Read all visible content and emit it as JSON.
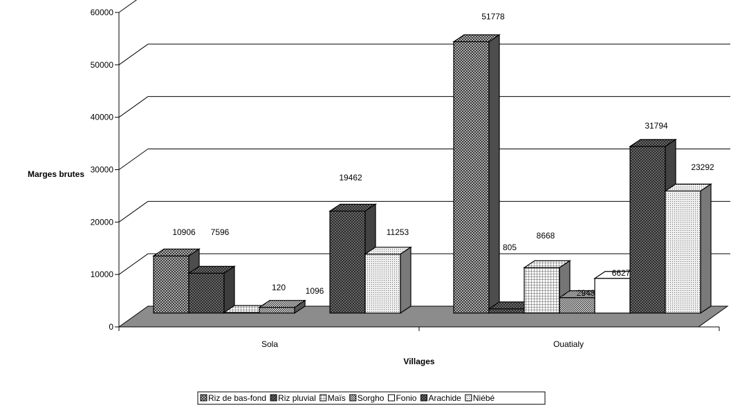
{
  "chart_data": {
    "type": "bar",
    "style": "3d-clustered",
    "title": "",
    "xlabel": "Villages",
    "ylabel": "Marges brutes",
    "ylim": [
      0,
      60000
    ],
    "yticks": [
      "0",
      "10000",
      "20000",
      "30000",
      "40000",
      "50000",
      "60000"
    ],
    "categories": [
      "Sola",
      "Ouatialy"
    ],
    "grid": true,
    "legend_position": "bottom",
    "series": [
      {
        "name": "Riz de bas-fond",
        "values": [
          10906,
          51778
        ],
        "labels": [
          "10906",
          "51778"
        ],
        "pattern": "dense-check",
        "color": "#8c8c8c"
      },
      {
        "name": "Riz pluvial",
        "values": [
          7596,
          805
        ],
        "labels": [
          "7596",
          "805"
        ],
        "pattern": "dark-check",
        "color": "#6e6e6e"
      },
      {
        "name": "Maïs",
        "values": [
          120,
          8668
        ],
        "labels": [
          "120",
          "8668"
        ],
        "pattern": "light-grid",
        "color": "#d4d4d4"
      },
      {
        "name": "Sorgho",
        "values": [
          1096,
          2948
        ],
        "labels": [
          "1096",
          "2948"
        ],
        "pattern": "small-check",
        "color": "#9a9a9a"
      },
      {
        "name": "Fonio",
        "values": [
          0,
          6627
        ],
        "labels": [
          "",
          "6627"
        ],
        "pattern": "white",
        "color": "#ffffff"
      },
      {
        "name": "Arachide",
        "values": [
          19462,
          31794
        ],
        "labels": [
          "19462",
          "31794"
        ],
        "pattern": "dark-check",
        "color": "#7a7a7a"
      },
      {
        "name": "Niébé",
        "values": [
          11253,
          23292
        ],
        "labels": [
          "11253",
          "23292"
        ],
        "pattern": "light-dots",
        "color": "#dcdcdc"
      }
    ]
  }
}
